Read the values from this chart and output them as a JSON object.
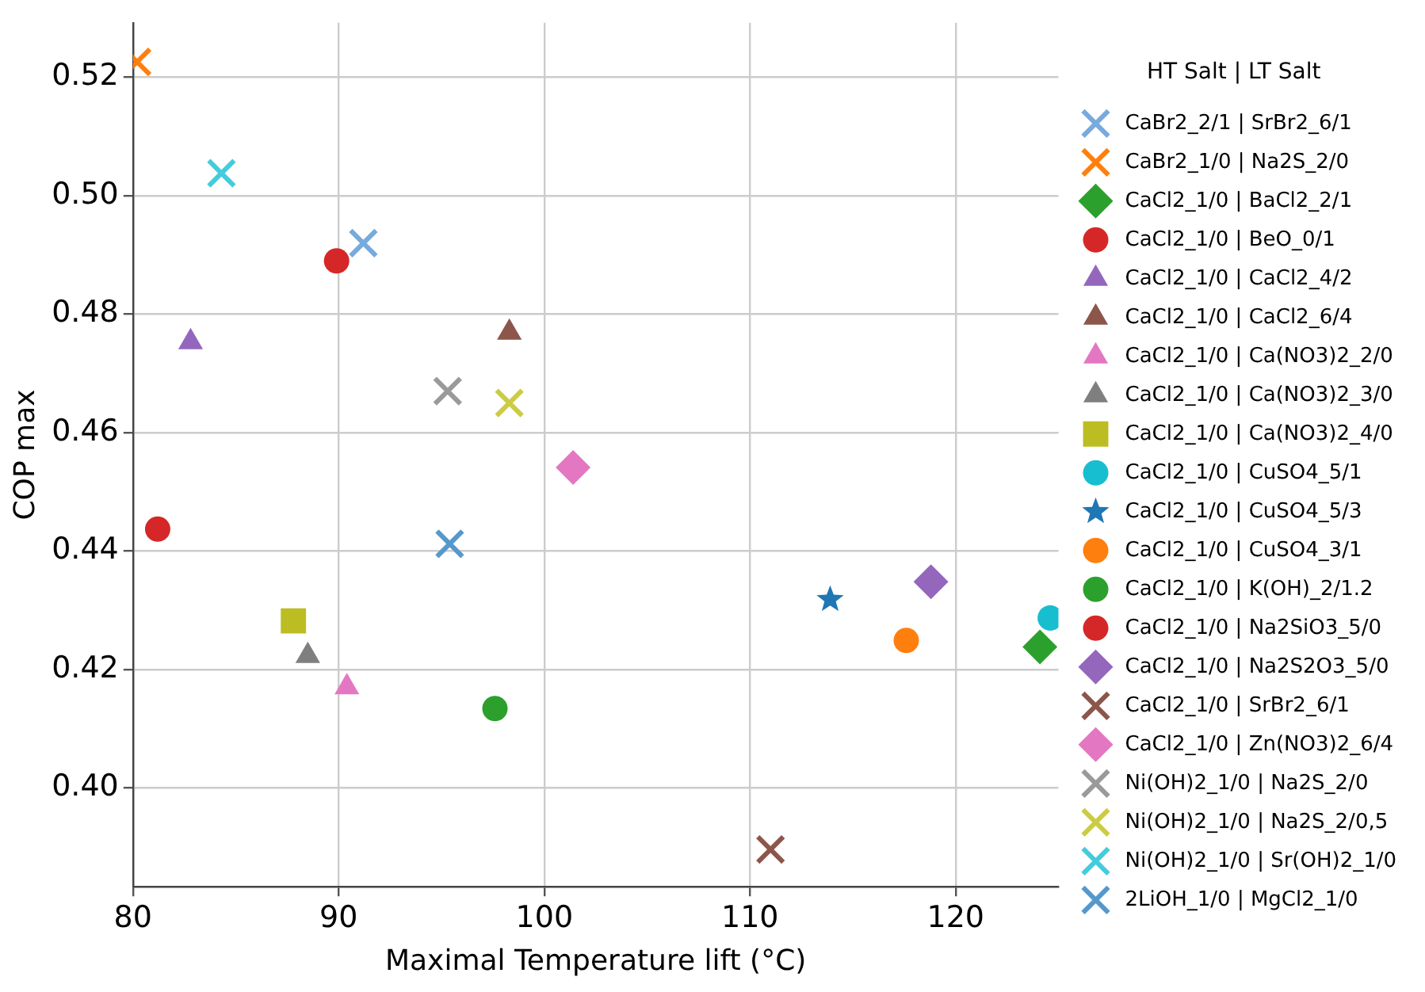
{
  "chart_data": {
    "type": "scatter",
    "xlabel": "Maximal Temperature lift (°C)",
    "ylabel": "COP max",
    "legend_title": "HT Salt | LT Salt",
    "legend": "right",
    "grid": true,
    "xlim": [
      80,
      125
    ],
    "xticks": [
      80,
      90,
      100,
      110,
      120
    ],
    "ylim": [
      0.3833,
      0.5292
    ],
    "yticks": [
      {
        "value": 0.4,
        "label": "0.40"
      },
      {
        "value": 0.42,
        "label": "0.42"
      },
      {
        "value": 0.44,
        "label": "0.44"
      },
      {
        "value": 0.46,
        "label": "0.46"
      },
      {
        "value": 0.48,
        "label": "0.48"
      },
      {
        "value": 0.5,
        "label": "0.50"
      },
      {
        "value": 0.52,
        "label": "0.52"
      }
    ],
    "series": [
      {
        "name": "CaBr2_2/1 | SrBr2_6/1",
        "color": "#77aadd",
        "marker": "cross",
        "x": [
          91.2
        ],
        "values": [
          0.492
        ]
      },
      {
        "name": "CaBr2_1/0 | Na2S_2/0",
        "color": "#ff7f0e",
        "marker": "cross",
        "x": [
          80.2
        ],
        "values": [
          0.5226
        ]
      },
      {
        "name": "CaCl2_1/0 | BaCl2_2/1",
        "color": "#2ca02c",
        "marker": "diamond",
        "x": [
          124.1
        ],
        "values": [
          0.4238
        ]
      },
      {
        "name": "CaCl2_1/0 | BeO_0/1",
        "color": "#d62728",
        "marker": "circle",
        "x": [
          81.2
        ],
        "values": [
          0.4437
        ]
      },
      {
        "name": "CaCl2_1/0 | CaCl2_4/2",
        "color": "#9467bd",
        "marker": "triangle",
        "x": [
          82.8
        ],
        "values": [
          0.4753
        ]
      },
      {
        "name": "CaCl2_1/0 | CaCl2_6/4",
        "color": "#8c564b",
        "marker": "triangle",
        "x": [
          98.3
        ],
        "values": [
          0.4769
        ]
      },
      {
        "name": "CaCl2_1/0 | Ca(NO3)2_2/0",
        "color": "#e377c2",
        "marker": "triangle",
        "x": [
          90.4
        ],
        "values": [
          0.417
        ]
      },
      {
        "name": "CaCl2_1/0 | Ca(NO3)2_3/0",
        "color": "#7f7f7f",
        "marker": "triangle",
        "x": [
          88.5
        ],
        "values": [
          0.4223
        ]
      },
      {
        "name": "CaCl2_1/0 | Ca(NO3)2_4/0",
        "color": "#bcbd22",
        "marker": "square",
        "x": [
          87.8
        ],
        "values": [
          0.4282
        ]
      },
      {
        "name": "CaCl2_1/0 | CuSO4_5/1",
        "color": "#17becf",
        "marker": "circle",
        "x": [
          124.6
        ],
        "values": [
          0.4287
        ]
      },
      {
        "name": "CaCl2_1/0 | CuSO4_5/3",
        "color": "#1f77b4",
        "marker": "star",
        "x": [
          113.9
        ],
        "values": [
          0.4318
        ]
      },
      {
        "name": "CaCl2_1/0 | CuSO4_3/1",
        "color": "#ff7f0e",
        "marker": "circle",
        "x": [
          117.6
        ],
        "values": [
          0.4249
        ]
      },
      {
        "name": "CaCl2_1/0 | K(OH)_2/1.2",
        "color": "#2ca02c",
        "marker": "circle",
        "x": [
          97.6
        ],
        "values": [
          0.4134
        ]
      },
      {
        "name": "CaCl2_1/0 | Na2SiO3_5/0",
        "color": "#d62728",
        "marker": "circle",
        "x": [
          89.9
        ],
        "values": [
          0.489
        ]
      },
      {
        "name": "CaCl2_1/0 | Na2S2O3_5/0",
        "color": "#9467bd",
        "marker": "diamond",
        "x": [
          118.8
        ],
        "values": [
          0.4348
        ]
      },
      {
        "name": "CaCl2_1/0 | SrBr2_6/1",
        "color": "#8c564b",
        "marker": "cross",
        "x": [
          111.0
        ],
        "values": [
          0.3896
        ]
      },
      {
        "name": "CaCl2_1/0 | Zn(NO3)2_6/4",
        "color": "#e377c2",
        "marker": "diamond",
        "x": [
          101.4
        ],
        "values": [
          0.4541
        ]
      },
      {
        "name": "Ni(OH)2_1/0 | Na2S_2/0",
        "color": "#9a9a9a",
        "marker": "cross",
        "x": [
          95.3
        ],
        "values": [
          0.467
        ]
      },
      {
        "name": "Ni(OH)2_1/0 | Na2S_2/0,5",
        "color": "#cccc44",
        "marker": "cross",
        "x": [
          98.3
        ],
        "values": [
          0.465
        ]
      },
      {
        "name": "Ni(OH)2_1/0 | Sr(OH)2_1/0",
        "color": "#44ccdd",
        "marker": "cross",
        "x": [
          84.3
        ],
        "values": [
          0.5038
        ]
      },
      {
        "name": "2LiOH_1/0 | MgCl2_1/0",
        "color": "#5599cc",
        "marker": "cross",
        "x": [
          95.4
        ],
        "values": [
          0.4412
        ]
      }
    ]
  }
}
